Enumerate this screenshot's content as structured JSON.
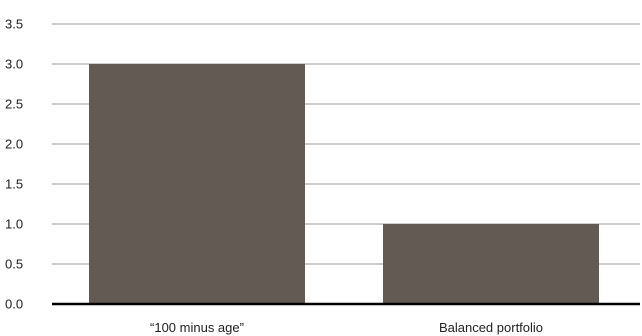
{
  "chart_data": {
    "type": "bar",
    "title": "",
    "xlabel": "",
    "ylabel": "",
    "categories": [
      "“100 minus age”",
      "Balanced portfolio"
    ],
    "values": [
      3.0,
      1.0
    ],
    "ylim": [
      0,
      3.5
    ],
    "yticks": [
      "0.0",
      "0.5",
      "1.0",
      "1.5",
      "2.0",
      "2.5",
      "3.0",
      "3.5"
    ],
    "grid": true,
    "legend": "none",
    "bar_color": "#635a53",
    "grid_color": "#9a9a9a",
    "axis_color": "#000000"
  }
}
